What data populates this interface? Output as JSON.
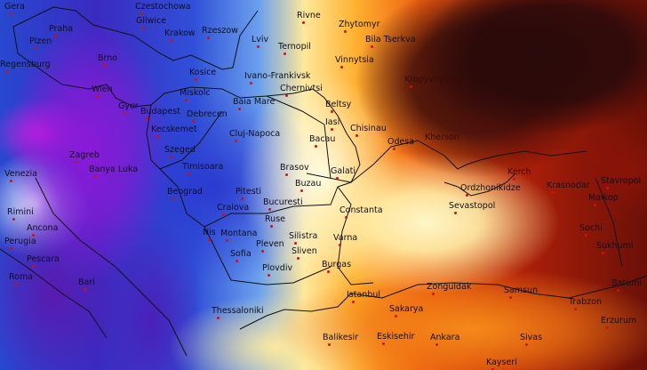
{
  "map": {
    "type": "weather-temperature-map",
    "palette": {
      "cold": "#3a2ac0",
      "very_cold": "#e020e0",
      "neutral": "#ffe89a",
      "warm": "#ef6010",
      "hot": "#2a0a0a"
    },
    "cities": [
      "Gera",
      "Czestochowa",
      "Rivne",
      "Zhytomyr",
      "Bila Tserkva",
      "Gliwice",
      "Krakow",
      "Rzeszow",
      "Lviv",
      "Ternopil",
      "Vinnytsia",
      "Praha",
      "Plzen",
      "Regensburg",
      "Brno",
      "Kosice",
      "Ivano-Frankivsk",
      "Chernivtsi",
      "Kropyvnytskyi",
      "Wien",
      "Miskolc",
      "Beltsy",
      "Gyor",
      "Budapest",
      "Debrecen",
      "Baia Mare",
      "Iasi",
      "Chisinau",
      "Kecskemet",
      "Cluj-Napoca",
      "Bacau",
      "Odesa",
      "Kherson",
      "Szeged",
      "Timisoara",
      "Brasov",
      "Galati",
      "Venezia",
      "Zagreb",
      "Banya Luka",
      "Beograd",
      "Pitesti",
      "Buzau",
      "Constanta",
      "Craiova",
      "Bucuresti",
      "Ruse",
      "Sevastopol",
      "Ordzhonikidze",
      "Kerch",
      "Krasnodar",
      "Maikop",
      "Stavropol",
      "Rimini",
      "Ancona",
      "Perugia",
      "Sochi",
      "Sukhumi",
      "Nis",
      "Montana",
      "Pleven",
      "Silistra",
      "Varna",
      "Sofia",
      "Sliven",
      "Burgas",
      "Pescara",
      "Roma",
      "Plovdiv",
      "Batumi",
      "Zonguldak",
      "Samsun",
      "Bari",
      "Istanbul",
      "Trabzon",
      "Sakarya",
      "Thessaloniki",
      "Erzurum",
      "Balikesir",
      "Eskisehir",
      "Ankara",
      "Sivas",
      "Kayseri"
    ]
  }
}
